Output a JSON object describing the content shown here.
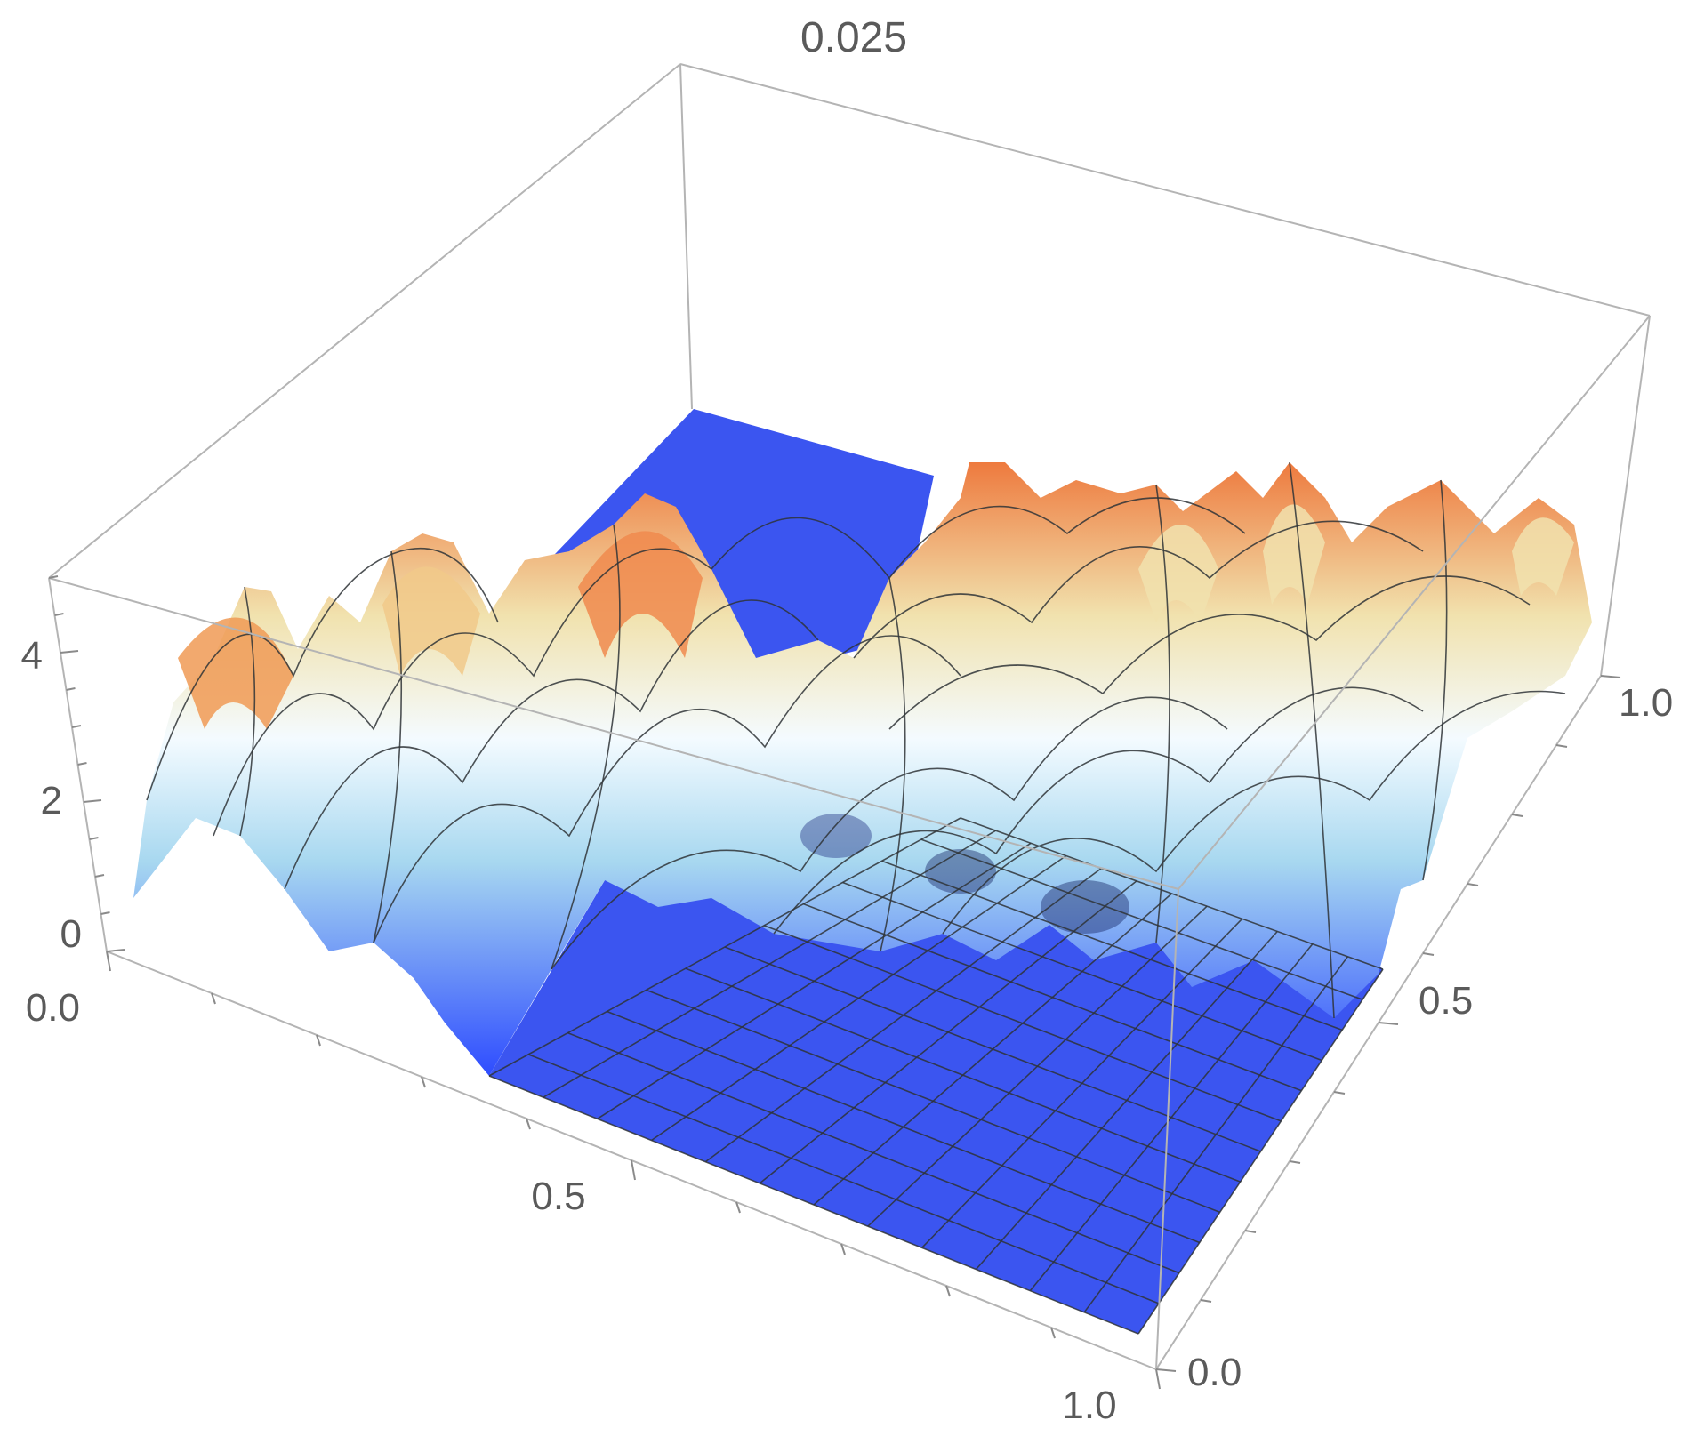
{
  "chart_data": {
    "type": "surface3d",
    "title": "0.025",
    "xlabel": "",
    "ylabel": "",
    "zlabel": "",
    "xlim": [
      0,
      1
    ],
    "ylim": [
      0,
      1
    ],
    "zlim": [
      0,
      5
    ],
    "x_ticks": [
      "0.0",
      "0.5",
      "1.0"
    ],
    "y_ticks": [
      "0.0",
      "0.5",
      "1.0"
    ],
    "z_ticks": [
      "0",
      "2",
      "4"
    ],
    "x_tick_values": [
      0.0,
      0.5,
      1.0
    ],
    "y_tick_values": [
      0.0,
      0.5,
      1.0
    ],
    "z_tick_values": [
      0,
      2,
      4
    ],
    "colormap": [
      "#2e4cff",
      "#ffffff",
      "#f0e0a8",
      "#f59a55",
      "#e96a3a"
    ],
    "flat_region_color": "#3b55f0",
    "background": "#ffffff",
    "box": true,
    "mesh": true,
    "peaks": [
      {
        "x": 0.06,
        "y": 0.7,
        "z": 4.6
      },
      {
        "x": 0.2,
        "y": 0.95,
        "z": 4.8
      },
      {
        "x": 0.16,
        "y": 0.55,
        "z": 2.8
      },
      {
        "x": 0.05,
        "y": 0.3,
        "z": 2.9
      },
      {
        "x": 0.3,
        "y": 0.35,
        "z": 2.5
      },
      {
        "x": 0.52,
        "y": 0.75,
        "z": 3.3
      },
      {
        "x": 0.7,
        "y": 0.85,
        "z": 3.2
      },
      {
        "x": 0.85,
        "y": 0.95,
        "z": 3.6
      },
      {
        "x": 0.62,
        "y": 0.55,
        "z": 2.9
      },
      {
        "x": 0.8,
        "y": 0.55,
        "z": 3.0
      },
      {
        "x": 0.45,
        "y": 0.4,
        "z": 2.6
      },
      {
        "x": 0.68,
        "y": 0.38,
        "z": 2.9
      },
      {
        "x": 0.88,
        "y": 0.3,
        "z": 2.7
      },
      {
        "x": 0.95,
        "y": 0.7,
        "z": 2.6
      }
    ]
  }
}
